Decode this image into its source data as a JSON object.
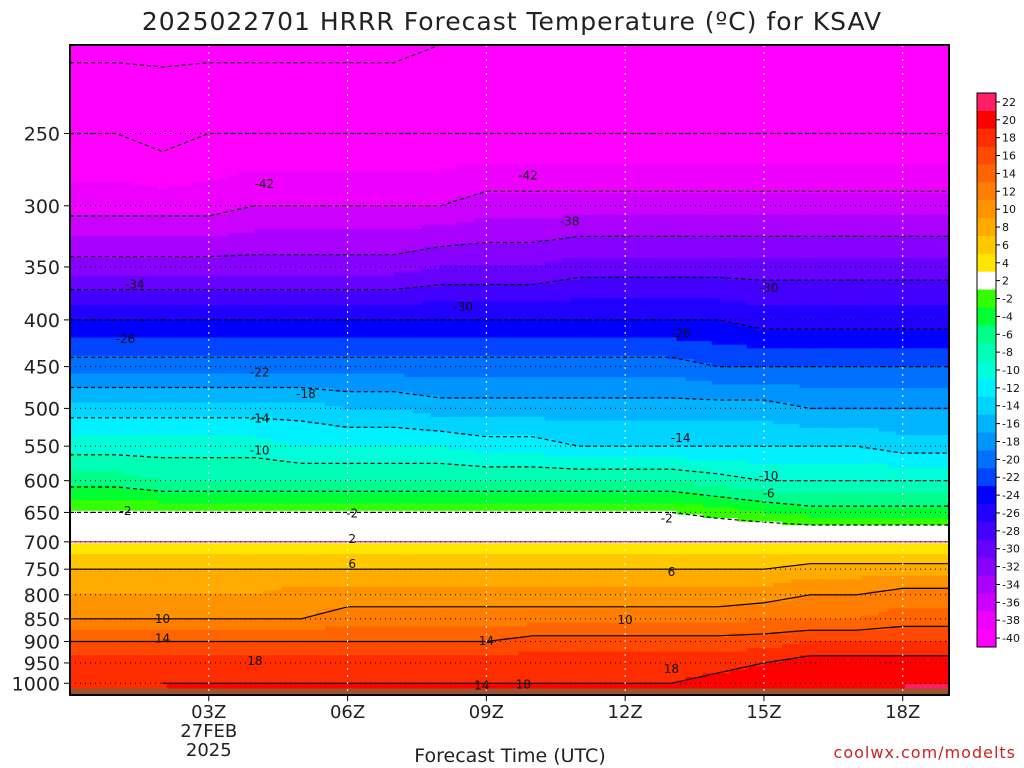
{
  "title": "2025022701 HRRR Forecast Temperature (ºC) for KSAV",
  "credit": "coolwx.com/modelts",
  "chart_data": {
    "type": "heatmap",
    "title": "2025022701 HRRR Forecast Temperature (ºC) for KSAV",
    "xlabel": "Forecast Time (UTC)",
    "ylabel": "",
    "x_hours": [
      0,
      1,
      2,
      3,
      4,
      5,
      6,
      7,
      8,
      9,
      10,
      11,
      12,
      13,
      14,
      15,
      16,
      17,
      18,
      19
    ],
    "xlim": [
      0,
      19
    ],
    "x_ticks": [
      {
        "hour": 3,
        "label": "03Z",
        "sub": [
          "27FEB",
          "2025"
        ]
      },
      {
        "hour": 6,
        "label": "06Z",
        "sub": []
      },
      {
        "hour": 9,
        "label": "09Z",
        "sub": []
      },
      {
        "hour": 12,
        "label": "12Z",
        "sub": []
      },
      {
        "hour": 15,
        "label": "15Z",
        "sub": []
      },
      {
        "hour": 18,
        "label": "18Z",
        "sub": []
      }
    ],
    "y_scale": "log",
    "y_reversed": true,
    "ylim_hpa": [
      1030,
      200
    ],
    "y_ticks": [
      "250",
      "300",
      "350",
      "400",
      "450",
      "500",
      "550",
      "600",
      "650",
      "700",
      "750",
      "800",
      "850",
      "900",
      "950",
      "1000"
    ],
    "grid": true,
    "levels_hpa": [
      1000,
      950,
      900,
      850,
      800,
      750,
      700,
      650,
      600,
      550,
      500,
      450,
      400,
      350,
      300,
      250,
      200
    ],
    "temperature_c": [
      [
        16,
        17,
        18,
        18,
        18,
        18,
        18,
        18,
        18,
        18,
        18,
        18,
        18,
        18,
        19,
        19,
        19,
        19,
        20,
        20
      ],
      [
        17,
        17,
        17,
        17,
        17,
        17,
        17,
        17,
        17,
        17,
        17,
        17,
        17,
        17,
        17,
        18,
        19,
        19,
        19,
        19
      ],
      [
        14,
        14,
        14,
        14,
        14,
        14,
        14,
        14,
        14,
        14,
        15,
        15,
        15,
        15,
        15,
        15,
        16,
        16,
        16,
        16
      ],
      [
        10,
        10,
        10,
        10,
        10,
        10,
        11,
        11,
        11,
        11,
        11,
        11,
        11,
        11,
        11,
        12,
        12,
        12,
        13,
        13
      ],
      [
        8,
        8,
        8,
        8,
        8,
        9,
        9,
        9,
        9,
        9,
        9,
        9,
        9,
        9,
        9,
        9,
        10,
        10,
        11,
        11
      ],
      [
        6,
        6,
        6,
        6,
        6,
        6,
        6,
        6,
        6,
        6,
        6,
        6,
        6,
        6,
        6,
        6,
        7,
        7,
        7,
        7
      ],
      [
        2,
        2,
        2,
        2,
        2,
        2,
        2,
        2,
        2,
        2,
        2,
        2,
        2,
        2,
        2,
        2,
        2,
        2,
        2,
        2
      ],
      [
        -2,
        -2,
        -2,
        -2,
        -2,
        -2,
        -2,
        -2,
        -2,
        -2,
        -2,
        -2,
        -2,
        -2,
        -3,
        -4,
        -5,
        -5,
        -5,
        -5
      ],
      [
        -7,
        -7,
        -8,
        -8,
        -8,
        -8,
        -8,
        -8,
        -8,
        -8,
        -8,
        -8,
        -8,
        -8,
        -9,
        -10,
        -10,
        -10,
        -10,
        -10
      ],
      [
        -11,
        -11,
        -11,
        -11,
        -11,
        -12,
        -12,
        -12,
        -12,
        -13,
        -13,
        -14,
        -14,
        -14,
        -14,
        -14,
        -14,
        -14,
        -15,
        -15
      ],
      [
        -15,
        -15,
        -15,
        -15,
        -15,
        -15,
        -16,
        -16,
        -17,
        -17,
        -17,
        -17,
        -17,
        -17,
        -17,
        -17,
        -18,
        -18,
        -18,
        -18
      ],
      [
        -21,
        -21,
        -21,
        -21,
        -21,
        -21,
        -21,
        -21,
        -21,
        -21,
        -21,
        -21,
        -21,
        -21,
        -22,
        -22,
        -22,
        -22,
        -22,
        -22
      ],
      [
        -26,
        -26,
        -26,
        -26,
        -26,
        -26,
        -26,
        -26,
        -26,
        -26,
        -26,
        -26,
        -26,
        -26,
        -26,
        -27,
        -27,
        -27,
        -27,
        -27
      ],
      [
        -33,
        -33,
        -33,
        -33,
        -33,
        -33,
        -33,
        -33,
        -32,
        -32,
        -32,
        -31,
        -31,
        -31,
        -31,
        -31,
        -31,
        -31,
        -31,
        -31
      ],
      [
        -39,
        -39,
        -39,
        -39,
        -38,
        -38,
        -38,
        -38,
        -38,
        -37,
        -37,
        -37,
        -37,
        -37,
        -37,
        -37,
        -37,
        -37,
        -37,
        -37
      ],
      [
        -42,
        -42,
        -43,
        -42,
        -42,
        -42,
        -42,
        -42,
        -42,
        -42,
        -42,
        -42,
        -42,
        -42,
        -42,
        -42,
        -42,
        -42,
        -42,
        -42
      ],
      [
        -47,
        -47,
        -47,
        -47,
        -47,
        -47,
        -47,
        -47,
        -46,
        -46,
        -45,
        -45,
        -45,
        -45,
        -45,
        -45,
        -45,
        -45,
        -45,
        -45
      ]
    ],
    "color_scale": {
      "labels": [
        "22",
        "20",
        "18",
        "16",
        "14",
        "12",
        "10",
        "8",
        "6",
        "4",
        "2",
        "-2",
        "-4",
        "-6",
        "-8",
        "-10",
        "-12",
        "-14",
        "-16",
        "-18",
        "-20",
        "-22",
        "-24",
        "-26",
        "-28",
        "-30",
        "-32",
        "-34",
        "-36",
        "-38",
        "-40"
      ],
      "bins": [
        {
          "min": 20,
          "color": "#ff1f66"
        },
        {
          "min": 18,
          "color": "#ff0000"
        },
        {
          "min": 16,
          "color": "#ff2c00"
        },
        {
          "min": 14,
          "color": "#ff4800"
        },
        {
          "min": 12,
          "color": "#ff6400"
        },
        {
          "min": 10,
          "color": "#ff7d00"
        },
        {
          "min": 8,
          "color": "#ff9300"
        },
        {
          "min": 6,
          "color": "#ffab00"
        },
        {
          "min": 4,
          "color": "#ffc800"
        },
        {
          "min": 2,
          "color": "#ffe600"
        },
        {
          "min": -2,
          "color": "#ffffff"
        },
        {
          "min": -4,
          "color": "#33ff00"
        },
        {
          "min": -6,
          "color": "#00ff33"
        },
        {
          "min": -8,
          "color": "#00ff88"
        },
        {
          "min": -10,
          "color": "#00ffb4"
        },
        {
          "min": -12,
          "color": "#00ffd8"
        },
        {
          "min": -14,
          "color": "#00f0ff"
        },
        {
          "min": -16,
          "color": "#00d4ff"
        },
        {
          "min": -18,
          "color": "#00b4ff"
        },
        {
          "min": -20,
          "color": "#0094ff"
        },
        {
          "min": -22,
          "color": "#0070ff"
        },
        {
          "min": -24,
          "color": "#0044ff"
        },
        {
          "min": -26,
          "color": "#0000ff"
        },
        {
          "min": -28,
          "color": "#2200ff"
        },
        {
          "min": -30,
          "color": "#4400ff"
        },
        {
          "min": -32,
          "color": "#6600ff"
        },
        {
          "min": -34,
          "color": "#8800ff"
        },
        {
          "min": -36,
          "color": "#aa00ff"
        },
        {
          "min": -38,
          "color": "#cc00ff"
        },
        {
          "min": -40,
          "color": "#ee00ff"
        },
        {
          "min": -99,
          "color": "#ff00ff"
        }
      ]
    },
    "contour_labels": [
      {
        "hour": 4.2,
        "hpa": 284,
        "text": "-42"
      },
      {
        "hour": 9.9,
        "hpa": 278,
        "text": "-42"
      },
      {
        "hour": 10.8,
        "hpa": 312,
        "text": "-38"
      },
      {
        "hour": 1.4,
        "hpa": 366,
        "text": "-34"
      },
      {
        "hour": 8.5,
        "hpa": 387,
        "text": "-30"
      },
      {
        "hour": 15.1,
        "hpa": 369,
        "text": "-30"
      },
      {
        "hour": 1.2,
        "hpa": 420,
        "text": "-26"
      },
      {
        "hour": 13.2,
        "hpa": 414,
        "text": "-26"
      },
      {
        "hour": 4.1,
        "hpa": 457,
        "text": "-22"
      },
      {
        "hour": 5.1,
        "hpa": 482,
        "text": "-18"
      },
      {
        "hour": 4.1,
        "hpa": 513,
        "text": "-14"
      },
      {
        "hour": 13.2,
        "hpa": 539,
        "text": "-14"
      },
      {
        "hour": 4.1,
        "hpa": 556,
        "text": "-10"
      },
      {
        "hour": 15.1,
        "hpa": 593,
        "text": "-10"
      },
      {
        "hour": 15.1,
        "hpa": 620,
        "text": "-6"
      },
      {
        "hour": 1.2,
        "hpa": 648,
        "text": "-2"
      },
      {
        "hour": 6.1,
        "hpa": 652,
        "text": "-2"
      },
      {
        "hour": 12.9,
        "hpa": 660,
        "text": "-2"
      },
      {
        "hour": 6.1,
        "hpa": 695,
        "text": "2"
      },
      {
        "hour": 6.1,
        "hpa": 740,
        "text": "6"
      },
      {
        "hour": 13.0,
        "hpa": 755,
        "text": "6"
      },
      {
        "hour": 2.0,
        "hpa": 850,
        "text": "10"
      },
      {
        "hour": 12.0,
        "hpa": 852,
        "text": "10"
      },
      {
        "hour": 2.0,
        "hpa": 893,
        "text": "14"
      },
      {
        "hour": 9.0,
        "hpa": 899,
        "text": "14"
      },
      {
        "hour": 4.0,
        "hpa": 945,
        "text": "18"
      },
      {
        "hour": 13.0,
        "hpa": 965,
        "text": "18"
      },
      {
        "hour": 8.9,
        "hpa": 1006,
        "text": "14"
      },
      {
        "hour": 9.8,
        "hpa": 1003,
        "text": "18"
      }
    ]
  }
}
